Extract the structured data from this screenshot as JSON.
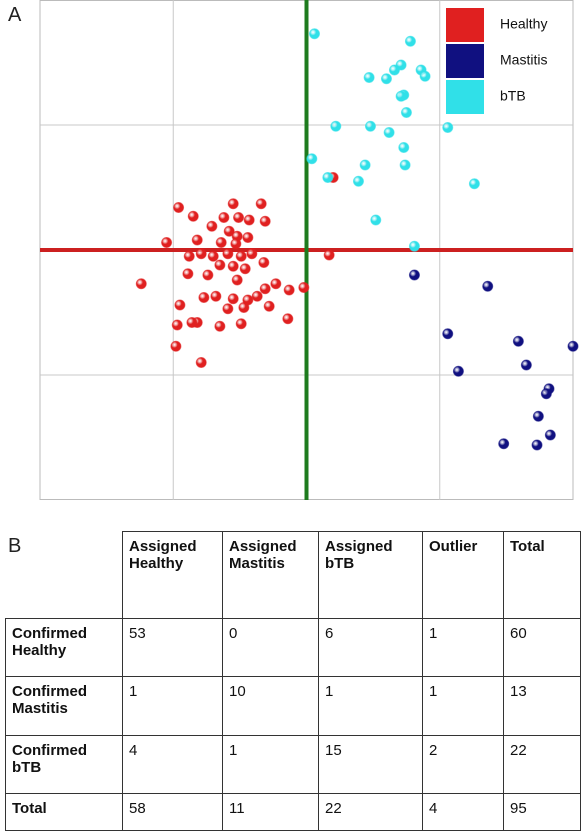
{
  "chart_data": {
    "type": "scatter",
    "panel": "A",
    "xlim": [
      -2,
      2
    ],
    "ylim": [
      -2,
      2
    ],
    "xticks": [
      -1,
      0,
      1
    ],
    "yticks": [
      -1,
      0,
      1
    ],
    "grid": true,
    "crosshair": {
      "x_color": "#1e7b1e",
      "y_color": "#cc2020"
    },
    "legend": "upper right",
    "series": [
      {
        "name": "Healthy",
        "color": "#e02020",
        "x": [
          -0.96,
          -0.85,
          -0.55,
          -0.34,
          -0.43,
          -0.31,
          -0.62,
          -0.51,
          -0.71,
          -0.58,
          -0.52,
          -0.44,
          -1.05,
          -0.82,
          -0.64,
          -0.53,
          -0.79,
          -0.7,
          -0.59,
          -0.49,
          -0.41,
          -0.32,
          -0.88,
          -0.65,
          -0.55,
          -0.46,
          -0.74,
          -0.52,
          -1.24,
          -0.89,
          -0.31,
          -0.23,
          -0.13,
          -0.02,
          -0.77,
          -0.68,
          -0.55,
          -0.44,
          -0.37,
          -0.95,
          -0.59,
          -0.47,
          -0.28,
          -0.82,
          -0.97,
          -0.86,
          -0.65,
          -0.49,
          -0.14,
          -0.98,
          -0.79,
          0.2,
          0.17
        ],
        "values": [
          0.34,
          0.27,
          0.37,
          0.37,
          0.24,
          0.23,
          0.26,
          0.26,
          0.19,
          0.15,
          0.11,
          0.1,
          0.06,
          0.08,
          0.06,
          0.05,
          -0.03,
          -0.05,
          -0.03,
          -0.05,
          -0.03,
          -0.1,
          -0.05,
          -0.12,
          -0.13,
          -0.15,
          -0.2,
          -0.24,
          -0.27,
          -0.19,
          -0.31,
          -0.27,
          -0.32,
          -0.3,
          -0.38,
          -0.37,
          -0.39,
          -0.4,
          -0.37,
          -0.44,
          -0.47,
          -0.46,
          -0.45,
          -0.58,
          -0.6,
          -0.58,
          -0.61,
          -0.59,
          -0.55,
          -0.77,
          -0.9,
          0.58,
          -0.04
        ]
      },
      {
        "name": "Mastitis",
        "color": "#101080",
        "x": [
          0.81,
          1.36,
          1.06,
          1.59,
          2.0,
          1.14,
          1.65,
          1.82,
          1.8,
          1.74,
          1.83,
          1.73,
          1.48
        ],
        "values": [
          -0.2,
          -0.29,
          -0.67,
          -0.73,
          -0.77,
          -0.97,
          -0.92,
          -1.11,
          -1.15,
          -1.33,
          -1.48,
          -1.56,
          -1.55
        ]
      },
      {
        "name": "bTB",
        "color": "#30e0e8",
        "x": [
          0.06,
          0.78,
          0.66,
          0.71,
          0.86,
          0.89,
          0.47,
          0.6,
          0.73,
          0.71,
          0.22,
          0.48,
          0.62,
          0.75,
          1.06,
          0.73,
          0.04,
          0.44,
          0.74,
          0.16,
          0.39,
          1.26,
          0.52,
          0.81
        ],
        "values": [
          1.73,
          1.67,
          1.44,
          1.48,
          1.44,
          1.39,
          1.38,
          1.37,
          1.24,
          1.23,
          0.99,
          0.99,
          0.94,
          1.1,
          0.98,
          0.82,
          0.73,
          0.68,
          0.68,
          0.58,
          0.55,
          0.53,
          0.24,
          0.03
        ]
      }
    ]
  },
  "table": {
    "panel": "B",
    "columns": [
      "Assigned Healthy",
      "Assigned Mastitis",
      "Assigned bTB",
      "Outlier",
      "Total"
    ],
    "rows": [
      [
        "Confirmed Healthy",
        53,
        0,
        6,
        1,
        60
      ],
      [
        "Confirmed Mastitis",
        1,
        10,
        1,
        1,
        13
      ],
      [
        "Confirmed bTB",
        4,
        1,
        15,
        2,
        22
      ],
      [
        "Total",
        58,
        11,
        22,
        4,
        95
      ]
    ]
  }
}
